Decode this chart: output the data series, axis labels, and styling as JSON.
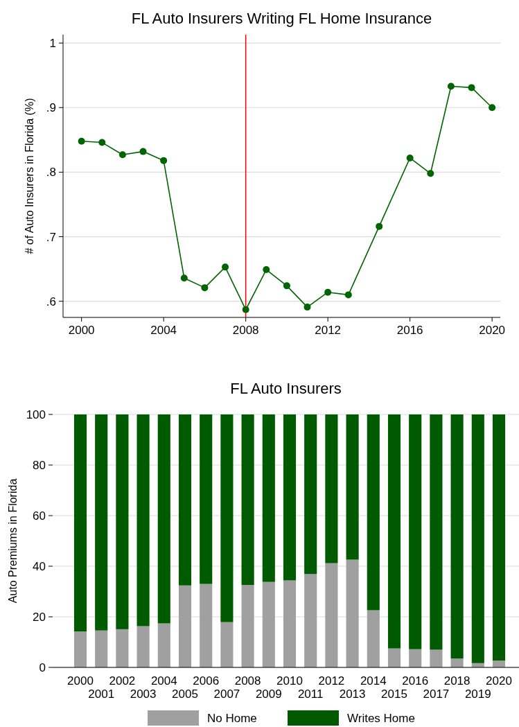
{
  "chart_data": [
    {
      "type": "line",
      "title": "FL Auto Insurers Writing FL Home Insurance",
      "ylabel": "# of Auto Insurers in Florida (%)",
      "marker": "circle",
      "grid": "y",
      "xlim": [
        1999.1,
        2020.4
      ],
      "xticks": [
        2000,
        2004,
        2008,
        2012,
        2016,
        2020
      ],
      "ylim": [
        0.575,
        1.013
      ],
      "yticks": [
        {
          "value": 0.6,
          "label": ".6"
        },
        {
          "value": 0.7,
          "label": ".7"
        },
        {
          "value": 0.8,
          "label": ".8"
        },
        {
          "value": 0.9,
          "label": ".9"
        },
        {
          "value": 1,
          "label": "1"
        }
      ],
      "ref_lines": [
        {
          "axis": "x",
          "value": 2008,
          "color": "#ff0000"
        }
      ],
      "series": [
        {
          "color": "#006400",
          "x": [
            2000,
            2001,
            2002,
            2003,
            2004,
            2005,
            2006,
            2007,
            2008,
            2009,
            2010,
            2011,
            2012,
            2013,
            2014.5,
            2016,
            2017,
            2018,
            2019,
            2020
          ],
          "values": [
            0.848,
            0.846,
            0.827,
            0.832,
            0.818,
            0.636,
            0.621,
            0.653,
            0.587,
            0.649,
            0.624,
            0.591,
            0.614,
            0.61,
            0.716,
            0.822,
            0.798,
            0.933,
            0.931,
            0.9
          ]
        }
      ]
    },
    {
      "type": "bar",
      "title": "FL Auto Insurers",
      "ylabel": "Auto Premiums in Florida",
      "stacked": true,
      "grid": "y",
      "legend": "bottom",
      "categories": [
        "2000",
        "2001",
        "2002",
        "2003",
        "2004",
        "2005",
        "2006",
        "2007",
        "2008",
        "2009",
        "2010",
        "2011",
        "2012",
        "2013",
        "2014",
        "2015",
        "2016",
        "2017",
        "2018",
        "2019",
        "2020"
      ],
      "ylim": [
        0,
        100
      ],
      "yticks": [
        0,
        20,
        40,
        60,
        80,
        100
      ],
      "series": [
        {
          "name": "No Home",
          "color": "#a0a0a0",
          "values": [
            14.2,
            14.6,
            15.1,
            16.3,
            17.4,
            32.4,
            33.0,
            17.9,
            32.6,
            33.8,
            34.4,
            36.9,
            41.2,
            42.6,
            22.6,
            7.5,
            7.2,
            7.0,
            3.5,
            1.7,
            2.7
          ]
        },
        {
          "name": "Writes Home",
          "color": "#005a00",
          "values": [
            85.8,
            85.4,
            84.9,
            83.7,
            82.6,
            67.6,
            67.0,
            82.1,
            67.4,
            66.2,
            65.6,
            63.1,
            58.8,
            57.4,
            77.4,
            92.5,
            92.8,
            93.0,
            96.5,
            98.3,
            97.3
          ]
        }
      ]
    }
  ]
}
